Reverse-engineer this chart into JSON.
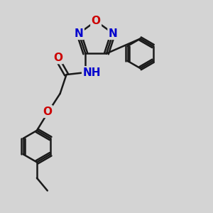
{
  "bg_color": "#d4d4d4",
  "bond_color": "#1a1a1a",
  "bond_width": 1.8,
  "atom_colors": {
    "C": "#1a1a1a",
    "N": "#0000cc",
    "O": "#cc0000",
    "H": "#2e8b57"
  },
  "font_size_atom": 11,
  "font_size_small": 9
}
